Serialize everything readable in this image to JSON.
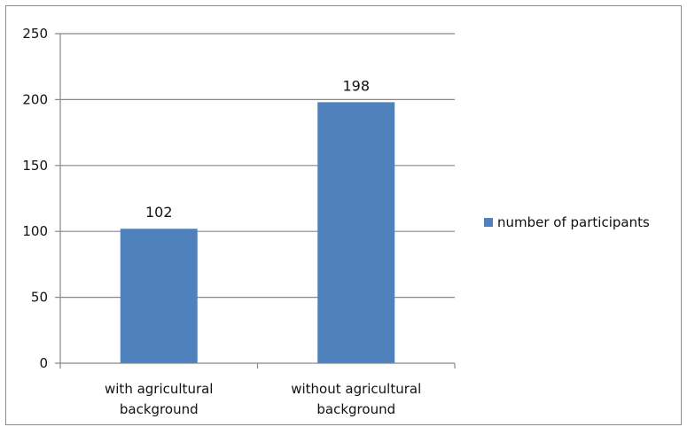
{
  "chart_data": {
    "type": "bar",
    "categories": [
      [
        "with agricultural",
        "background"
      ],
      [
        "without agricultural",
        "background"
      ]
    ],
    "series": [
      {
        "name": "number of participants",
        "values": [
          102,
          198
        ],
        "color": "#4f81bd"
      }
    ],
    "data_labels": [
      "102",
      "198"
    ],
    "ylim": [
      0,
      250
    ],
    "yticks": [
      0,
      50,
      100,
      150,
      200,
      250
    ],
    "ytick_labels": [
      "0",
      "50",
      "100",
      "150",
      "200",
      "250"
    ],
    "grid": true,
    "legend": "right",
    "gridline_color": "#888888",
    "axis_color": "#888888"
  }
}
